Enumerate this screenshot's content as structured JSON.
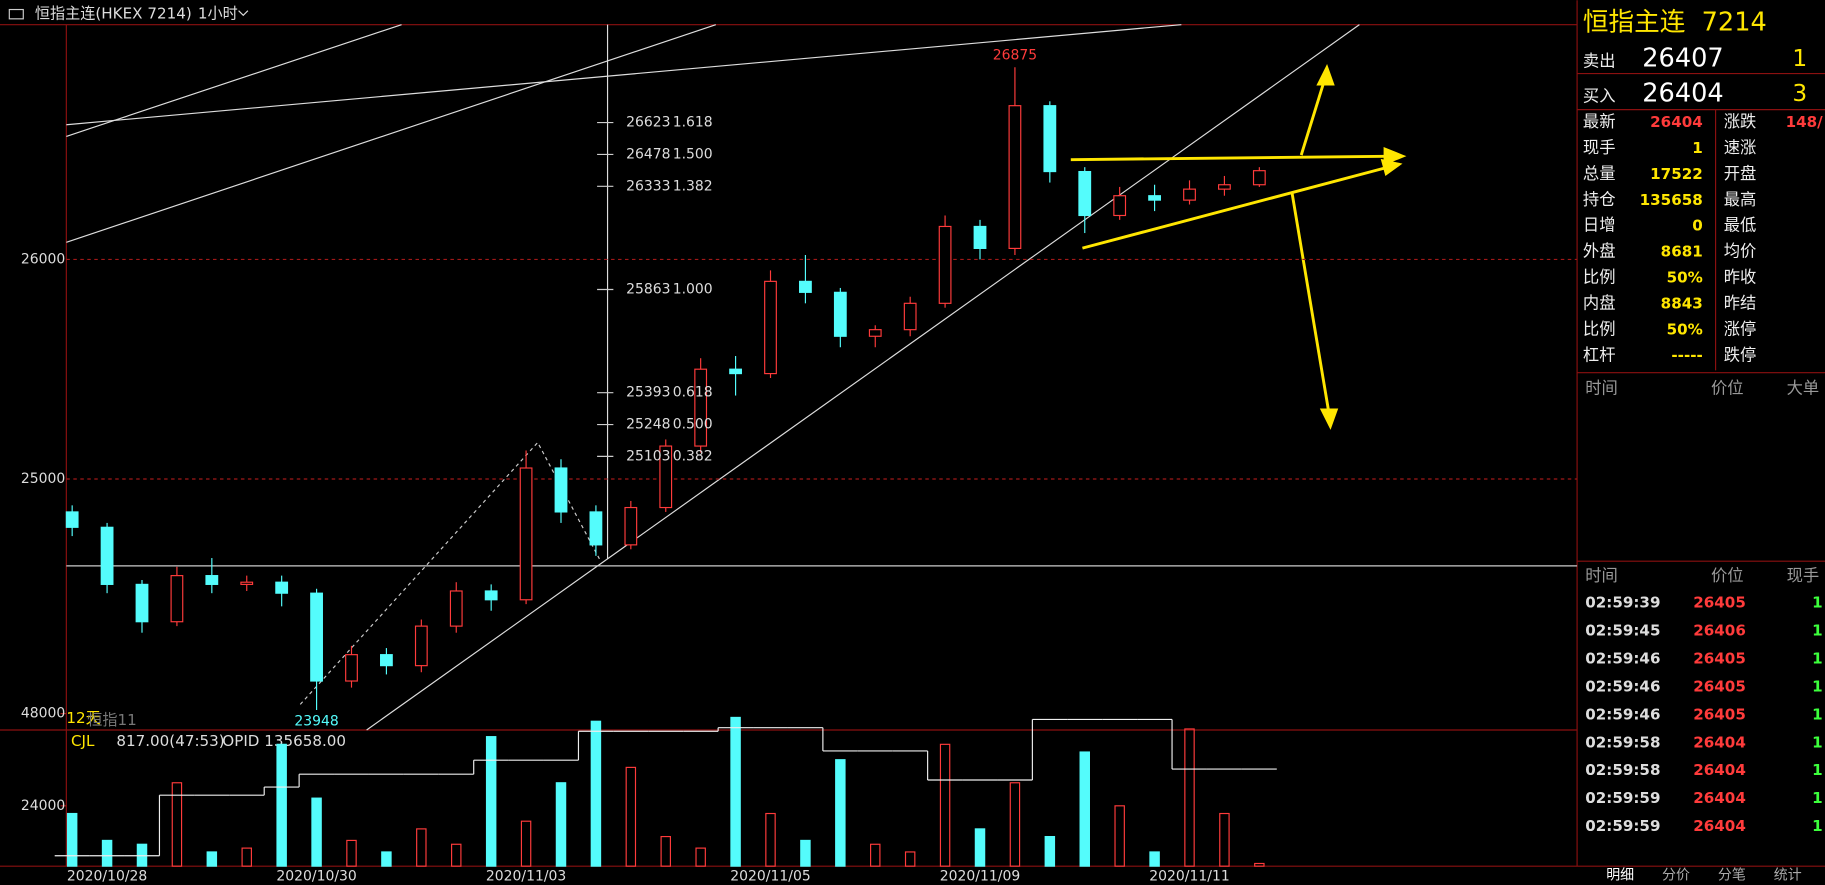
{
  "header": {
    "symbol": "恒指主连(HKEX 7214)",
    "interval": "1小时"
  },
  "chart": {
    "type": "candlestick",
    "x": [
      null,
      "2020/10/28",
      null,
      null,
      null,
      null,
      null,
      "2020/10/30",
      null,
      null,
      null,
      null,
      null,
      "2020/11/03",
      null,
      null,
      null,
      null,
      null,
      null,
      "2020/11/05",
      null,
      null,
      null,
      null,
      null,
      "2020/11/09",
      null,
      null,
      null,
      null,
      null,
      "2020/11/11",
      null,
      null
    ],
    "open": [
      24850,
      24780,
      24520,
      24350,
      24560,
      24520,
      24530,
      24480,
      24080,
      24200,
      24150,
      24330,
      24490,
      24450,
      25050,
      24850,
      24700,
      24870,
      25150,
      25500,
      25480,
      25900,
      25850,
      25650,
      25680,
      25800,
      26150,
      26050,
      26700,
      26400,
      26200,
      26290,
      26270,
      26320,
      26340
    ],
    "high": [
      24880,
      24800,
      24540,
      24600,
      24640,
      24560,
      24560,
      24500,
      24240,
      24230,
      24360,
      24530,
      24520,
      25130,
      25090,
      24880,
      24900,
      25180,
      25550,
      25560,
      25950,
      26020,
      25870,
      25700,
      25830,
      26200,
      26180,
      26875,
      26720,
      26420,
      26330,
      26340,
      26360,
      26380,
      26420
    ],
    "low": [
      24740,
      24480,
      24300,
      24330,
      24480,
      24490,
      24420,
      23948,
      24050,
      24110,
      24120,
      24300,
      24400,
      24430,
      24800,
      24650,
      24680,
      24850,
      25120,
      25380,
      25460,
      25800,
      25600,
      25600,
      25650,
      25780,
      26000,
      26020,
      26350,
      26120,
      26180,
      26220,
      26250,
      26290,
      26330
    ],
    "close": [
      24780,
      24520,
      24350,
      24560,
      24520,
      24530,
      24480,
      24080,
      24200,
      24150,
      24330,
      24490,
      24450,
      25050,
      24850,
      24700,
      24870,
      25150,
      25500,
      25480,
      25900,
      25850,
      25650,
      25680,
      25800,
      26150,
      26050,
      26700,
      26400,
      26200,
      26290,
      26270,
      26320,
      26340,
      26404
    ],
    "ylim": [
      23857,
      27069
    ],
    "yticks": [
      25000,
      26000
    ],
    "up_color": "#ff3b3b",
    "down_color": "#54fcfc",
    "high_label": 26875,
    "low_label": 23948,
    "fib": [
      {
        "price": 26623,
        "ratio": "1.618"
      },
      {
        "price": 26478,
        "ratio": "1.500"
      },
      {
        "price": 26333,
        "ratio": "1.382"
      },
      {
        "price": 25863,
        "ratio": "1.000"
      },
      {
        "price": 25393,
        "ratio": "0.618"
      },
      {
        "price": 25248,
        "ratio": "0.500"
      },
      {
        "price": 25103,
        "ratio": "0.382"
      }
    ],
    "period_label": "12天",
    "ma_label": "恒指11"
  },
  "indicator": {
    "name": "CJL",
    "value": "817.00(47:53)",
    "opid": "OPID 135658.00",
    "volume": [
      22000,
      15000,
      14000,
      30000,
      12000,
      13000,
      40000,
      26000,
      15000,
      12000,
      18000,
      14000,
      42000,
      20000,
      30000,
      46000,
      34000,
      16000,
      13000,
      47000,
      22000,
      15000,
      36000,
      14000,
      12000,
      40000,
      18000,
      30000,
      16000,
      38000,
      24000,
      12000,
      44000,
      22000,
      9000
    ],
    "ylim": [
      8000,
      51000
    ],
    "yticks": [
      24000,
      48000
    ],
    "open_interest": [
      104200,
      104200,
      104200,
      126200,
      126200,
      126200,
      129150,
      133800,
      133800,
      133800,
      133800,
      133800,
      138900,
      138900,
      138900,
      149400,
      149400,
      149400,
      149400,
      150700,
      150700,
      150700,
      142250,
      142250,
      142250,
      131700,
      131700,
      131700,
      153700,
      153700,
      153700,
      153700,
      135658,
      135658,
      135658
    ],
    "oi_lim": [
      100000,
      160000
    ]
  },
  "panel": {
    "title": "恒指主连",
    "code": "7214",
    "sell": {
      "label": "卖出",
      "price": 26407,
      "qty": 1
    },
    "buy": {
      "label": "买入",
      "price": 26404,
      "qty": 3
    },
    "left": [
      [
        "最新",
        "26404"
      ],
      [
        "现手",
        "1"
      ],
      [
        "总量",
        "17522"
      ],
      [
        "持仓",
        "135658"
      ],
      [
        "日增",
        "0"
      ],
      [
        "外盘",
        "8681"
      ],
      [
        "比例",
        "50%"
      ],
      [
        "内盘",
        "8843"
      ],
      [
        "比例",
        "50%"
      ],
      [
        "杠杆",
        "-----"
      ]
    ],
    "right": [
      "涨跌",
      "速涨",
      "开盘",
      "最高",
      "最低",
      "均价",
      "昨收",
      "昨结",
      "涨停",
      "跌停"
    ],
    "change": "148/",
    "big_header": [
      "时间",
      "价位",
      "大单"
    ],
    "trade_header": [
      "时间",
      "价位",
      "现手"
    ],
    "trades": [
      [
        "02:59:39",
        "26405",
        "1"
      ],
      [
        "02:59:45",
        "26406",
        "1"
      ],
      [
        "02:59:46",
        "26405",
        "1"
      ],
      [
        "02:59:46",
        "26405",
        "1"
      ],
      [
        "02:59:46",
        "26405",
        "1"
      ],
      [
        "02:59:58",
        "26404",
        "1"
      ],
      [
        "02:59:58",
        "26404",
        "1"
      ],
      [
        "02:59:59",
        "26404",
        "1"
      ],
      [
        "02:59:59",
        "26404",
        "1"
      ]
    ],
    "tabs": [
      "明细",
      "分价",
      "分笔",
      "统计"
    ]
  }
}
